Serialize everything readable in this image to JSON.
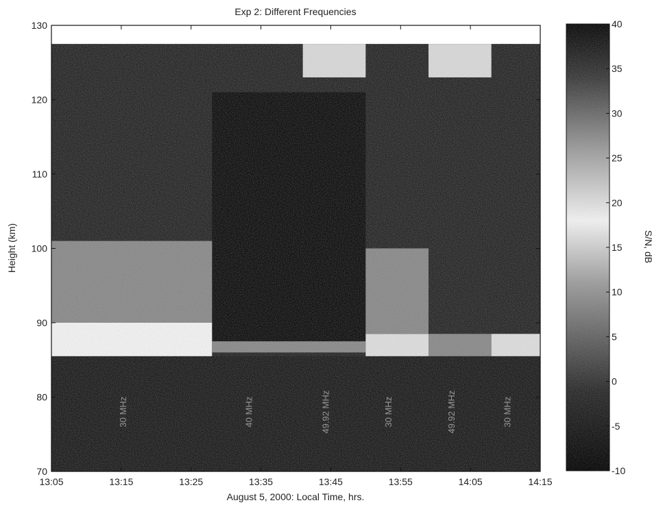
{
  "chart_data": {
    "type": "heatmap",
    "title": "Exp 2: Different Frequencies",
    "xlabel": "August 5, 2000: Local Time, hrs.",
    "ylabel": "Height (km)",
    "colorbar_label": "S/N, dB",
    "x_ticks": [
      "13:05",
      "13:15",
      "13:25",
      "13:35",
      "13:45",
      "13:55",
      "14:05",
      "14:15"
    ],
    "x_range_minutes": [
      0,
      70
    ],
    "y_ticks": [
      70,
      80,
      90,
      100,
      110,
      120,
      130
    ],
    "ylim": [
      70,
      130
    ],
    "data_top_km": 127.5,
    "colorbar_ticks": [
      -10,
      -5,
      0,
      5,
      10,
      15,
      20,
      25,
      30,
      35,
      40
    ],
    "clim": [
      -10,
      40
    ],
    "colormap": "gray (dark = high S/N)",
    "segment_labels": [
      "30 MHz",
      "40 MHz",
      "49.92 MHz",
      "30 MHz",
      "49.92 MHz",
      "30 MHz"
    ],
    "segments_minutes": [
      [
        0,
        23
      ],
      [
        23,
        36
      ],
      [
        36,
        45
      ],
      [
        45,
        54
      ],
      [
        54,
        63
      ],
      [
        63,
        70
      ]
    ],
    "echo_layers": [
      {
        "start": 0,
        "end": 23,
        "bottom_km": 85.5,
        "top_km": 90,
        "peak_snr": 18
      },
      {
        "start": 0,
        "end": 23,
        "bottom_km": 90,
        "top_km": 101,
        "peak_snr": 28
      },
      {
        "start": 23,
        "end": 45,
        "bottom_km": 86,
        "top_km": 87.5,
        "peak_snr": 28
      },
      {
        "start": 45,
        "end": 54,
        "bottom_km": 85.5,
        "top_km": 88.5,
        "peak_snr": 20
      },
      {
        "start": 45,
        "end": 54,
        "bottom_km": 88.5,
        "top_km": 100,
        "peak_snr": 28
      },
      {
        "start": 54,
        "end": 63,
        "bottom_km": 85.5,
        "top_km": 88.5,
        "peak_snr": 28
      },
      {
        "start": 63,
        "end": 70,
        "bottom_km": 85.5,
        "top_km": 88.5,
        "peak_snr": 20
      }
    ],
    "bright_regions": [
      {
        "start": 36,
        "end": 45,
        "bottom_km": 123,
        "top_km": 127.5
      },
      {
        "start": 54,
        "end": 63,
        "bottom_km": 123,
        "top_km": 127.5
      }
    ],
    "grid": false
  }
}
